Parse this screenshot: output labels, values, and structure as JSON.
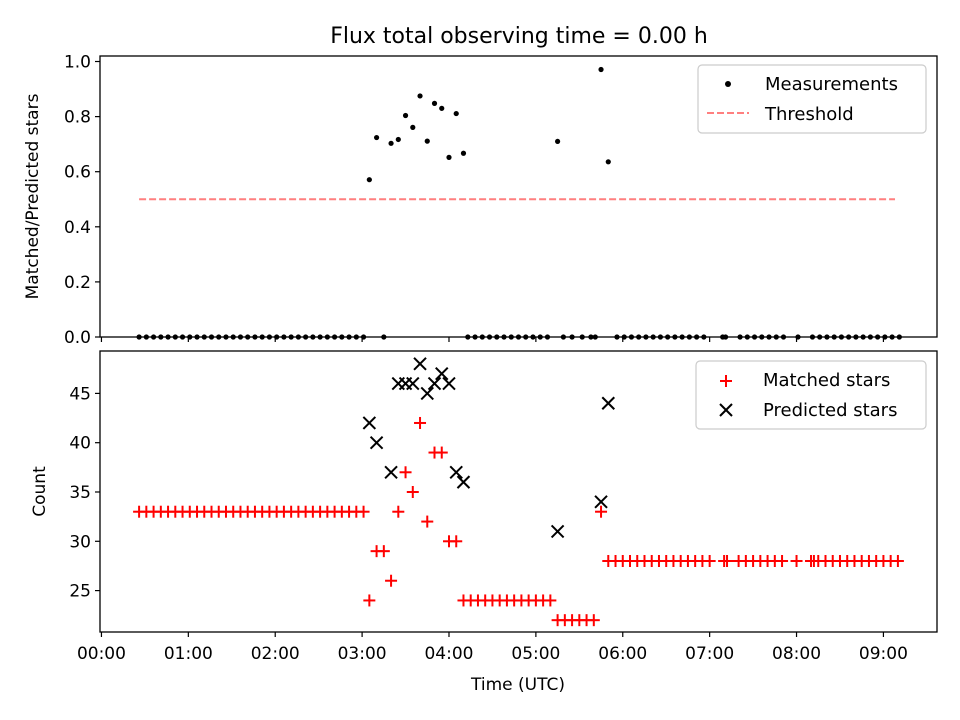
{
  "figure": {
    "title": "Flux total observing time = 0.00 h"
  },
  "chart_data": [
    {
      "type": "scatter",
      "ylabel": "Matched/Predicted stars",
      "xlabel": "",
      "ylim": [
        0.0,
        1.02
      ],
      "xlim": [
        "-00:01",
        "09:37"
      ],
      "grid": false,
      "legend_position": "top-right",
      "yticks": [
        "0.0",
        "0.2",
        "0.4",
        "0.6",
        "0.8",
        "1.0"
      ],
      "yticks_values": [
        0.0,
        0.2,
        0.4,
        0.6,
        0.8,
        1.0
      ],
      "series": [
        {
          "name": "Measurements",
          "kind": "dots",
          "color": "#000000",
          "points": [
            [
              "00:26",
              0
            ],
            [
              "00:31",
              0
            ],
            [
              "00:36",
              0
            ],
            [
              "00:41",
              0
            ],
            [
              "00:46",
              0
            ],
            [
              "00:51",
              0
            ],
            [
              "00:56",
              0
            ],
            [
              "01:01",
              0
            ],
            [
              "01:06",
              0
            ],
            [
              "01:11",
              0
            ],
            [
              "01:16",
              0
            ],
            [
              "01:21",
              0
            ],
            [
              "01:26",
              0
            ],
            [
              "01:31",
              0
            ],
            [
              "01:36",
              0
            ],
            [
              "01:41",
              0
            ],
            [
              "01:46",
              0
            ],
            [
              "01:51",
              0
            ],
            [
              "01:56",
              0
            ],
            [
              "02:01",
              0
            ],
            [
              "02:06",
              0
            ],
            [
              "02:11",
              0
            ],
            [
              "02:16",
              0
            ],
            [
              "02:21",
              0
            ],
            [
              "02:26",
              0
            ],
            [
              "02:31",
              0
            ],
            [
              "02:36",
              0
            ],
            [
              "02:41",
              0
            ],
            [
              "02:46",
              0
            ],
            [
              "02:51",
              0
            ],
            [
              "02:56",
              0
            ],
            [
              "03:01",
              0
            ],
            [
              "03:15",
              0
            ],
            [
              "03:05",
              0.571
            ],
            [
              "03:10",
              0.724
            ],
            [
              "03:20",
              0.703
            ],
            [
              "03:25",
              0.717
            ],
            [
              "03:30",
              0.804
            ],
            [
              "03:35",
              0.761
            ],
            [
              "03:40",
              0.875
            ],
            [
              "03:45",
              0.711
            ],
            [
              "03:50",
              0.848
            ],
            [
              "03:55",
              0.83
            ],
            [
              "04:00",
              0.652
            ],
            [
              "04:05",
              0.811
            ],
            [
              "04:10",
              0.667
            ],
            [
              "04:13",
              0
            ],
            [
              "04:18",
              0
            ],
            [
              "04:23",
              0
            ],
            [
              "04:28",
              0
            ],
            [
              "04:33",
              0
            ],
            [
              "04:38",
              0
            ],
            [
              "04:43",
              0
            ],
            [
              "04:48",
              0
            ],
            [
              "04:53",
              0
            ],
            [
              "04:58",
              0
            ],
            [
              "05:03",
              0
            ],
            [
              "05:08",
              0
            ],
            [
              "05:19",
              0
            ],
            [
              "05:25",
              0
            ],
            [
              "05:32",
              0
            ],
            [
              "05:38",
              0
            ],
            [
              "05:41",
              0
            ],
            [
              "05:15",
              0.71
            ],
            [
              "05:45",
              0.971
            ],
            [
              "05:50",
              0.636
            ],
            [
              "05:56",
              0
            ],
            [
              "06:01",
              0
            ],
            [
              "06:06",
              0
            ],
            [
              "06:11",
              0
            ],
            [
              "06:16",
              0
            ],
            [
              "06:21",
              0
            ],
            [
              "06:26",
              0
            ],
            [
              "06:31",
              0
            ],
            [
              "06:36",
              0
            ],
            [
              "06:41",
              0
            ],
            [
              "06:46",
              0
            ],
            [
              "06:51",
              0
            ],
            [
              "06:56",
              0
            ],
            [
              "07:09",
              0
            ],
            [
              "07:11",
              0
            ],
            [
              "07:21",
              0
            ],
            [
              "07:26",
              0
            ],
            [
              "07:31",
              0
            ],
            [
              "07:36",
              0
            ],
            [
              "07:41",
              0
            ],
            [
              "07:46",
              0
            ],
            [
              "07:51",
              0
            ],
            [
              "08:01",
              0
            ],
            [
              "08:11",
              0
            ],
            [
              "08:16",
              0
            ],
            [
              "08:21",
              0
            ],
            [
              "08:26",
              0
            ],
            [
              "08:31",
              0
            ],
            [
              "08:36",
              0
            ],
            [
              "08:41",
              0
            ],
            [
              "08:46",
              0
            ],
            [
              "08:51",
              0
            ],
            [
              "08:56",
              0
            ],
            [
              "09:01",
              0
            ],
            [
              "09:06",
              0
            ],
            [
              "09:11",
              0
            ]
          ]
        },
        {
          "name": "Threshold",
          "kind": "dashed-line",
          "color": "#ff7f7f",
          "points": [
            [
              "00:26",
              0.5
            ],
            [
              "09:08",
              0.5
            ]
          ]
        }
      ]
    },
    {
      "type": "scatter",
      "ylabel": "Count",
      "xlabel": "Time (UTC)",
      "ylim": [
        20.8,
        49.3
      ],
      "xlim": [
        "-00:01",
        "09:37"
      ],
      "grid": false,
      "legend_position": "top-right",
      "yticks": [
        "25",
        "30",
        "35",
        "40",
        "45"
      ],
      "yticks_values": [
        25,
        30,
        35,
        40,
        45
      ],
      "xticks": [
        "00:00",
        "01:00",
        "02:00",
        "03:00",
        "04:00",
        "05:00",
        "06:00",
        "07:00",
        "08:00",
        "09:00"
      ],
      "xticks_values": [
        "00:00",
        "01:00",
        "02:00",
        "03:00",
        "04:00",
        "05:00",
        "06:00",
        "07:00",
        "08:00",
        "09:00"
      ],
      "series": [
        {
          "name": "Matched stars",
          "marker": "plus",
          "color": "#ff0000",
          "points": [
            [
              "00:26",
              33
            ],
            [
              "00:31",
              33
            ],
            [
              "00:36",
              33
            ],
            [
              "00:41",
              33
            ],
            [
              "00:46",
              33
            ],
            [
              "00:51",
              33
            ],
            [
              "00:56",
              33
            ],
            [
              "01:01",
              33
            ],
            [
              "01:06",
              33
            ],
            [
              "01:11",
              33
            ],
            [
              "01:16",
              33
            ],
            [
              "01:21",
              33
            ],
            [
              "01:26",
              33
            ],
            [
              "01:31",
              33
            ],
            [
              "01:36",
              33
            ],
            [
              "01:41",
              33
            ],
            [
              "01:46",
              33
            ],
            [
              "01:51",
              33
            ],
            [
              "01:56",
              33
            ],
            [
              "02:01",
              33
            ],
            [
              "02:06",
              33
            ],
            [
              "02:11",
              33
            ],
            [
              "02:16",
              33
            ],
            [
              "02:21",
              33
            ],
            [
              "02:26",
              33
            ],
            [
              "02:31",
              33
            ],
            [
              "02:36",
              33
            ],
            [
              "02:41",
              33
            ],
            [
              "02:46",
              33
            ],
            [
              "02:51",
              33
            ],
            [
              "02:56",
              33
            ],
            [
              "03:01",
              33
            ],
            [
              "03:05",
              24
            ],
            [
              "03:10",
              29
            ],
            [
              "03:15",
              29
            ],
            [
              "03:20",
              26
            ],
            [
              "03:25",
              33
            ],
            [
              "03:30",
              37
            ],
            [
              "03:35",
              35
            ],
            [
              "03:40",
              42
            ],
            [
              "03:45",
              32
            ],
            [
              "03:50",
              39
            ],
            [
              "03:55",
              39
            ],
            [
              "04:00",
              30
            ],
            [
              "04:05",
              30
            ],
            [
              "04:10",
              24
            ],
            [
              "04:15",
              24
            ],
            [
              "04:20",
              24
            ],
            [
              "04:25",
              24
            ],
            [
              "04:30",
              24
            ],
            [
              "04:35",
              24
            ],
            [
              "04:40",
              24
            ],
            [
              "04:45",
              24
            ],
            [
              "04:50",
              24
            ],
            [
              "04:55",
              24
            ],
            [
              "05:00",
              24
            ],
            [
              "05:05",
              24
            ],
            [
              "05:10",
              24
            ],
            [
              "05:15",
              22
            ],
            [
              "05:20",
              22
            ],
            [
              "05:25",
              22
            ],
            [
              "05:30",
              22
            ],
            [
              "05:35",
              22
            ],
            [
              "05:40",
              22
            ],
            [
              "05:45",
              33
            ],
            [
              "05:50",
              28
            ],
            [
              "05:55",
              28
            ],
            [
              "06:00",
              28
            ],
            [
              "06:05",
              28
            ],
            [
              "06:10",
              28
            ],
            [
              "06:15",
              28
            ],
            [
              "06:20",
              28
            ],
            [
              "06:25",
              28
            ],
            [
              "06:30",
              28
            ],
            [
              "06:35",
              28
            ],
            [
              "06:40",
              28
            ],
            [
              "06:45",
              28
            ],
            [
              "06:50",
              28
            ],
            [
              "06:55",
              28
            ],
            [
              "07:00",
              28
            ],
            [
              "07:10",
              28
            ],
            [
              "07:12",
              28
            ],
            [
              "07:20",
              28
            ],
            [
              "07:25",
              28
            ],
            [
              "07:30",
              28
            ],
            [
              "07:35",
              28
            ],
            [
              "07:40",
              28
            ],
            [
              "07:45",
              28
            ],
            [
              "07:50",
              28
            ],
            [
              "08:00",
              28
            ],
            [
              "08:10",
              28
            ],
            [
              "08:12",
              28
            ],
            [
              "08:15",
              28
            ],
            [
              "08:20",
              28
            ],
            [
              "08:25",
              28
            ],
            [
              "08:30",
              28
            ],
            [
              "08:35",
              28
            ],
            [
              "08:40",
              28
            ],
            [
              "08:45",
              28
            ],
            [
              "08:50",
              28
            ],
            [
              "08:55",
              28
            ],
            [
              "09:00",
              28
            ],
            [
              "09:05",
              28
            ],
            [
              "09:10",
              28
            ]
          ]
        },
        {
          "name": "Predicted stars",
          "marker": "x",
          "color": "#000000",
          "points": [
            [
              "03:05",
              42
            ],
            [
              "03:10",
              40
            ],
            [
              "03:20",
              37
            ],
            [
              "03:25",
              46
            ],
            [
              "03:30",
              46
            ],
            [
              "03:35",
              46
            ],
            [
              "03:40",
              48
            ],
            [
              "03:45",
              45
            ],
            [
              "03:50",
              46
            ],
            [
              "03:55",
              47
            ],
            [
              "04:00",
              46
            ],
            [
              "04:05",
              37
            ],
            [
              "04:10",
              36
            ],
            [
              "05:15",
              31
            ],
            [
              "05:45",
              34
            ],
            [
              "05:50",
              44
            ]
          ]
        }
      ]
    }
  ]
}
